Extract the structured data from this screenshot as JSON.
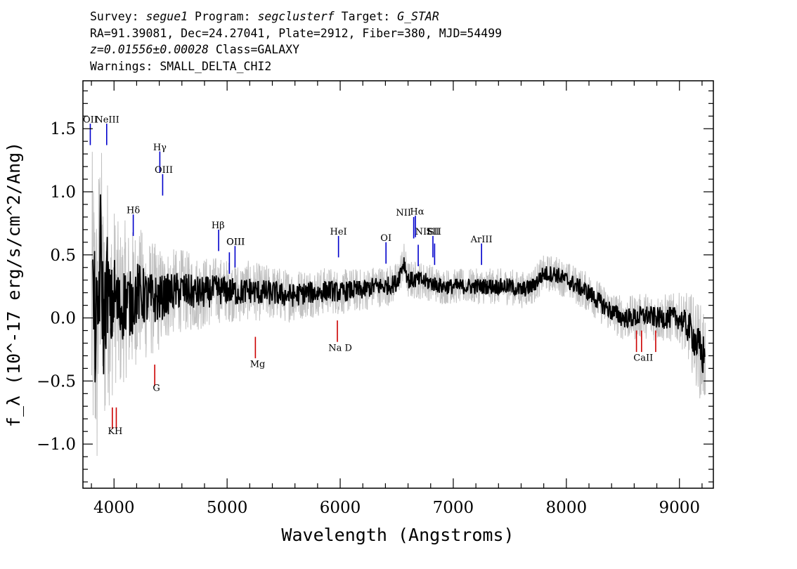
{
  "header": {
    "line1": {
      "survey_label": "Survey:",
      "survey": "segue1",
      "program_label": "Program:",
      "program": "segclusterf",
      "target_label": "Target:",
      "target": "G_STAR"
    },
    "line2": "RA=91.39081, Dec=24.27041, Plate=2912, Fiber=380, MJD=54499",
    "line3": {
      "z": "z=0.01556±0.00028",
      "class": "Class=GALAXY"
    },
    "line4": "Warnings: SMALL_DELTA_CHI2"
  },
  "colors": {
    "flux": "#000000",
    "error_band": "#c0c0c0",
    "emission": "#0000cc",
    "absorption": "#cc0000"
  },
  "chart_data": {
    "type": "line",
    "xlabel": "Wavelength (Angstroms)",
    "ylabel": "f_λ (10^-17 erg/s/cm^2/Ang)",
    "xlim": [
      3725,
      9300
    ],
    "ylim": [
      -1.35,
      1.88
    ],
    "xticks": [
      "4000",
      "5000",
      "6000",
      "7000",
      "8000",
      "9000"
    ],
    "yticks": [
      "−1.0",
      "−0.5",
      "0.0",
      "0.5",
      "1.0",
      "1.5"
    ],
    "grid": false,
    "series": [
      {
        "x": [
          3820,
          3850,
          3880,
          3910,
          3940,
          3970,
          4000,
          4050,
          4100,
          4150,
          4200,
          4300,
          4400,
          4500,
          4600,
          4700,
          4800,
          4900,
          5000,
          5100,
          5200,
          5300,
          5400,
          5500,
          5600,
          5700,
          5800,
          5900,
          6000,
          6100,
          6200,
          6300,
          6400,
          6500,
          6563,
          6600,
          6700,
          6800,
          6900,
          7000,
          7100,
          7200,
          7300,
          7400,
          7500,
          7600,
          7700,
          7800,
          7900,
          8000,
          8100,
          8200,
          8300,
          8400,
          8500,
          8600,
          8700,
          8800,
          8900,
          9000,
          9100,
          9200
        ],
        "values": [
          0.05,
          -0.2,
          0.55,
          -0.1,
          0.3,
          0.0,
          0.2,
          0.05,
          0.15,
          0.1,
          0.2,
          0.15,
          0.15,
          0.2,
          0.22,
          0.2,
          0.2,
          0.22,
          0.22,
          0.2,
          0.22,
          0.2,
          0.2,
          0.18,
          0.18,
          0.2,
          0.2,
          0.22,
          0.2,
          0.22,
          0.22,
          0.25,
          0.25,
          0.28,
          0.45,
          0.3,
          0.3,
          0.28,
          0.25,
          0.25,
          0.25,
          0.25,
          0.25,
          0.25,
          0.25,
          0.22,
          0.25,
          0.35,
          0.35,
          0.3,
          0.25,
          0.2,
          0.12,
          0.05,
          0.0,
          0.0,
          0.02,
          0.0,
          0.0,
          0.0,
          -0.1,
          -0.3
        ]
      }
    ],
    "error_band": {
      "x": [
        3800,
        4000,
        4500,
        5000,
        6000,
        7000,
        8000,
        9000,
        9200
      ],
      "halfwidth": [
        1.3,
        0.7,
        0.35,
        0.25,
        0.18,
        0.14,
        0.15,
        0.2,
        0.4
      ]
    },
    "emission_lines": [
      {
        "label": "OII",
        "x": 3790,
        "y1": 1.37,
        "y2": 1.54,
        "lx": 3790,
        "ly": 1.55
      },
      {
        "label": "NeIII",
        "x": 3935,
        "y1": 1.37,
        "y2": 1.54,
        "lx": 3940,
        "ly": 1.55
      },
      {
        "label": "Hγ",
        "x": 4405,
        "y1": 1.15,
        "y2": 1.32,
        "lx": 4405,
        "ly": 1.33
      },
      {
        "label": "OIII",
        "x": 4430,
        "y1": 0.97,
        "y2": 1.14,
        "lx": 4440,
        "ly": 1.15
      },
      {
        "label": "Hδ",
        "x": 4170,
        "y1": 0.65,
        "y2": 0.82,
        "lx": 4170,
        "ly": 0.83
      },
      {
        "label": "Hβ",
        "x": 4925,
        "y1": 0.53,
        "y2": 0.7,
        "lx": 4920,
        "ly": 0.71
      },
      {
        "label": "OIII",
        "x": 5020,
        "y1": 0.35,
        "y2": 0.52,
        "lx": 5075,
        "ly": 0.58
      },
      {
        "label": "OIII",
        "x": 5070,
        "y1": 0.4,
        "y2": 0.57,
        "lx": 5075,
        "ly": 0.58
      },
      {
        "label": "HeI",
        "x": 5985,
        "y1": 0.48,
        "y2": 0.65,
        "lx": 5985,
        "ly": 0.66
      },
      {
        "label": "OI",
        "x": 6405,
        "y1": 0.43,
        "y2": 0.6,
        "lx": 6405,
        "ly": 0.61
      },
      {
        "label": "NII",
        "x": 6650,
        "y1": 0.63,
        "y2": 0.8,
        "lx": 6560,
        "ly": 0.81
      },
      {
        "label": "Hα",
        "x": 6665,
        "y1": 0.64,
        "y2": 0.81,
        "lx": 6680,
        "ly": 0.82
      },
      {
        "label": "NII",
        "x": 6690,
        "y1": 0.41,
        "y2": 0.58,
        "lx": 6730,
        "ly": 0.66
      },
      {
        "label": "SII",
        "x": 6820,
        "y1": 0.48,
        "y2": 0.65,
        "lx": 6820,
        "ly": 0.66
      },
      {
        "label": "SII",
        "x": 6835,
        "y1": 0.42,
        "y2": 0.59,
        "lx": 6835,
        "ly": 0.66
      },
      {
        "label": "ArIII",
        "x": 7250,
        "y1": 0.42,
        "y2": 0.59,
        "lx": 7250,
        "ly": 0.6
      }
    ],
    "absorption_lines": [
      {
        "label": "K",
        "x": 3985,
        "y1": -0.71,
        "y2": -0.88
      },
      {
        "label": "H",
        "x": 4020,
        "y1": -0.71,
        "y2": -0.88
      },
      {
        "label": "G",
        "x": 4360,
        "y1": -0.37,
        "y2": -0.54
      },
      {
        "label": "Mg",
        "x": 5250,
        "y1": -0.15,
        "y2": -0.32
      },
      {
        "label": "Na D",
        "x": 5975,
        "y1": -0.02,
        "y2": -0.19
      },
      {
        "label": "CaII",
        "x": 8620,
        "y1": -0.1,
        "y2": -0.27
      },
      {
        "label": "CaII",
        "x": 8665,
        "y1": -0.1,
        "y2": -0.27
      },
      {
        "label": "CaII",
        "x": 8790,
        "y1": -0.1,
        "y2": -0.27
      }
    ],
    "absorption_labels": [
      {
        "text": "KH",
        "x": 4010,
        "y": -0.92
      },
      {
        "text": "G",
        "x": 4375,
        "y": -0.58
      },
      {
        "text": "Mg",
        "x": 5270,
        "y": -0.39
      },
      {
        "text": "Na D",
        "x": 6000,
        "y": -0.26
      },
      {
        "text": "CaII",
        "x": 8680,
        "y": -0.34
      }
    ]
  }
}
